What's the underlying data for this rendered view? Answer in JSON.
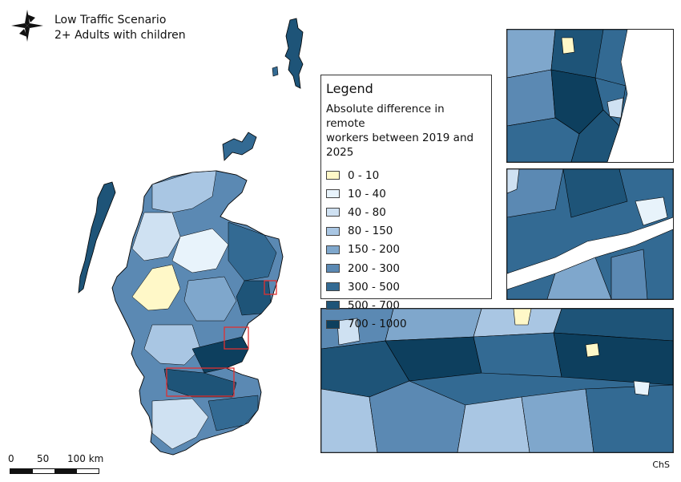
{
  "title": {
    "line1": "Low Traffic Scenario",
    "line2": "2+ Adults with children"
  },
  "north_arrow": {
    "icon": "compass-rose-icon"
  },
  "legend": {
    "title": "Legend",
    "subtitle_line1": "Absolute difference in remote",
    "subtitle_line2": "workers between 2019 and 2025",
    "classes": [
      {
        "label": "0 - 10",
        "color": "#fff8c8"
      },
      {
        "label": "10 - 40",
        "color": "#e8f3fb"
      },
      {
        "label": "40 - 80",
        "color": "#cfe1f2"
      },
      {
        "label": "80 - 150",
        "color": "#a9c6e3"
      },
      {
        "label": "150 - 200",
        "color": "#7fa7cc"
      },
      {
        "label": "200 - 300",
        "color": "#5b89b3"
      },
      {
        "label": "300 - 500",
        "color": "#336a93"
      },
      {
        "label": "500 - 700",
        "color": "#1e5478"
      },
      {
        "label": "700 - 1000",
        "color": "#0d3f5e"
      }
    ]
  },
  "scale_bar": {
    "labels": [
      "0",
      "50",
      "100 km"
    ]
  },
  "highlight_color": "#e03030",
  "credit": "ChS"
}
